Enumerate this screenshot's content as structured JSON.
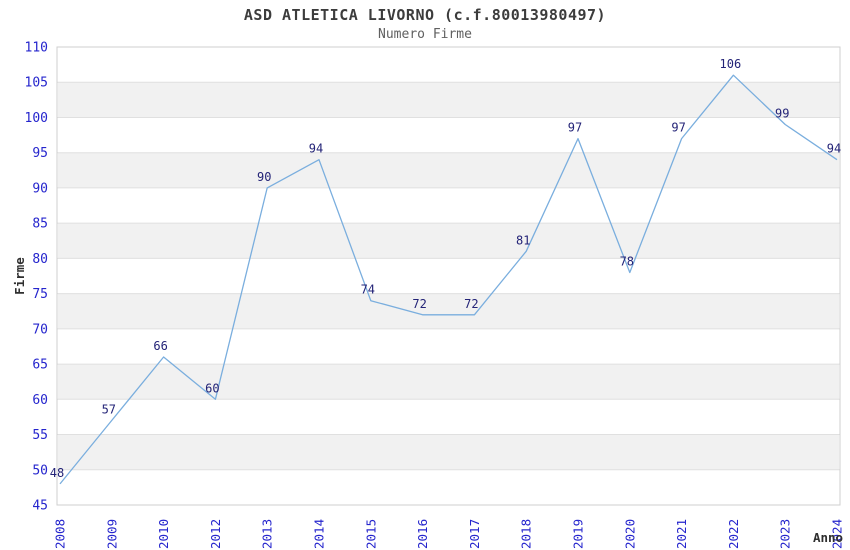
{
  "header": {
    "title": "ASD ATLETICA LIVORNO (c.f.80013980497)",
    "subtitle": "Numero Firme"
  },
  "colors": {
    "line": "#7aaede",
    "tick_label": "#2525cd",
    "data_label": "#232377",
    "band": "#f1f1f1",
    "grid": "#e0e0e0",
    "border": "#cfcfcf",
    "title": "#3c3c3c",
    "subtitle": "#606060",
    "axis_title": "#2f2f2f"
  },
  "chart_data": {
    "type": "line",
    "title": "ASD ATLETICA LIVORNO (c.f.80013980497)",
    "subtitle": "Numero Firme",
    "xlabel": "Anno",
    "ylabel": "Firme",
    "categories": [
      "2008",
      "2009",
      "2010",
      "2012",
      "2013",
      "2014",
      "2015",
      "2016",
      "2017",
      "2018",
      "2019",
      "2020",
      "2021",
      "2022",
      "2023",
      "2024"
    ],
    "values": [
      48,
      57,
      66,
      60,
      90,
      94,
      74,
      72,
      72,
      81,
      97,
      78,
      97,
      106,
      99,
      94
    ],
    "ylim": [
      45,
      110
    ],
    "yticks": [
      45,
      50,
      55,
      60,
      65,
      70,
      75,
      80,
      85,
      90,
      95,
      100,
      105,
      110
    ],
    "ytick_step": 5,
    "grid": "horizontal-bands-alternating",
    "legend": "none",
    "data_labels_shown": true
  }
}
